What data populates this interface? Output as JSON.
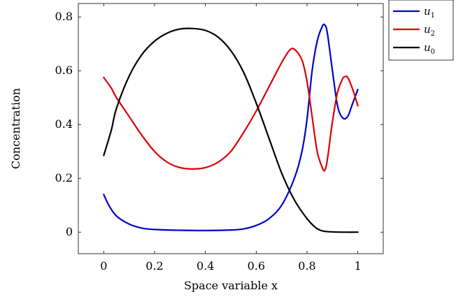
{
  "chart_data": {
    "type": "line",
    "title": "",
    "xlabel": "Space variable x",
    "ylabel": "Concentration",
    "xlim": [
      -0.1,
      1.1
    ],
    "ylim": [
      -0.08,
      0.85
    ],
    "xticks": [
      0,
      0.2,
      0.4,
      0.6,
      0.8,
      1
    ],
    "xtick_labels": [
      "0",
      "0.2",
      "0.4",
      "0.6",
      "0.8",
      "1"
    ],
    "yticks": [
      0,
      0.2,
      0.4,
      0.6,
      0.8
    ],
    "ytick_labels": [
      "0",
      "0.2",
      "0.4",
      "0.6",
      "0.8"
    ],
    "grid": false,
    "legend_position": "outside-top-right",
    "series": [
      {
        "name": "u",
        "subscript": "1",
        "color": "#0000cc",
        "x": [
          0.0,
          0.02,
          0.05,
          0.1,
          0.15,
          0.2,
          0.3,
          0.4,
          0.5,
          0.55,
          0.6,
          0.65,
          0.7,
          0.75,
          0.78,
          0.8,
          0.82,
          0.84,
          0.86,
          0.87,
          0.88,
          0.9,
          0.92,
          0.94,
          0.96,
          0.98,
          1.0
        ],
        "y": [
          0.14,
          0.1,
          0.06,
          0.03,
          0.015,
          0.01,
          0.007,
          0.006,
          0.008,
          0.012,
          0.025,
          0.05,
          0.1,
          0.2,
          0.3,
          0.42,
          0.6,
          0.71,
          0.765,
          0.77,
          0.74,
          0.6,
          0.47,
          0.425,
          0.43,
          0.48,
          0.53
        ]
      },
      {
        "name": "u",
        "subscript": "2",
        "color": "#dd0000",
        "x": [
          0.0,
          0.03,
          0.05,
          0.1,
          0.15,
          0.2,
          0.25,
          0.3,
          0.35,
          0.4,
          0.45,
          0.5,
          0.55,
          0.6,
          0.65,
          0.7,
          0.73,
          0.75,
          0.78,
          0.8,
          0.82,
          0.84,
          0.86,
          0.87,
          0.88,
          0.9,
          0.92,
          0.94,
          0.95,
          0.96,
          0.98,
          1.0
        ],
        "y": [
          0.575,
          0.535,
          0.5,
          0.43,
          0.36,
          0.3,
          0.26,
          0.24,
          0.235,
          0.24,
          0.26,
          0.3,
          0.37,
          0.45,
          0.54,
          0.63,
          0.675,
          0.68,
          0.64,
          0.56,
          0.43,
          0.3,
          0.24,
          0.23,
          0.27,
          0.41,
          0.52,
          0.57,
          0.578,
          0.575,
          0.53,
          0.47
        ]
      },
      {
        "name": "u",
        "subscript": "0",
        "color": "#000000",
        "x": [
          0.0,
          0.03,
          0.05,
          0.1,
          0.15,
          0.2,
          0.25,
          0.3,
          0.35,
          0.4,
          0.45,
          0.5,
          0.55,
          0.6,
          0.65,
          0.7,
          0.75,
          0.8,
          0.83,
          0.85,
          0.87,
          0.9,
          0.95,
          1.0
        ],
        "y": [
          0.285,
          0.38,
          0.46,
          0.58,
          0.66,
          0.71,
          0.74,
          0.755,
          0.757,
          0.75,
          0.725,
          0.675,
          0.595,
          0.48,
          0.35,
          0.22,
          0.12,
          0.05,
          0.02,
          0.008,
          0.003,
          0.001,
          0.0,
          0.0
        ]
      }
    ]
  }
}
